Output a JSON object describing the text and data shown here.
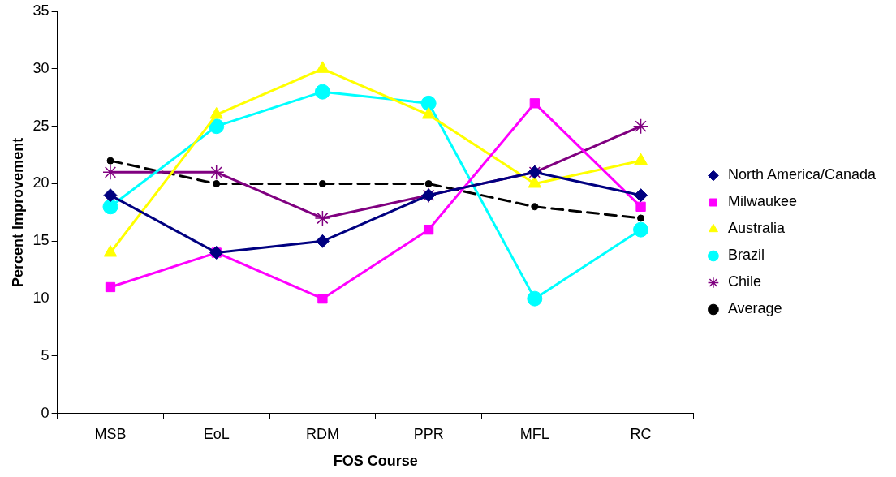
{
  "chart_data": {
    "type": "line",
    "xlabel": "FOS Course",
    "ylabel": "Percent Improvement",
    "categories": [
      "MSB",
      "EoL",
      "RDM",
      "PPR",
      "MFL",
      "RC"
    ],
    "ylim": [
      0,
      35
    ],
    "yticks": [
      0,
      5,
      10,
      15,
      20,
      25,
      30,
      35
    ],
    "grid": false,
    "legend": "right",
    "series": [
      {
        "name": "North America/Canada",
        "color": "#000080",
        "marker": "diamond",
        "values": [
          19,
          14,
          15,
          19,
          21,
          19
        ]
      },
      {
        "name": "Milwaukee",
        "color": "#ff00ff",
        "marker": "square",
        "values": [
          11,
          14,
          10,
          16,
          27,
          18
        ]
      },
      {
        "name": "Australia",
        "color": "#ffff00",
        "marker": "triangle",
        "values": [
          14,
          26,
          30,
          26,
          20,
          22
        ]
      },
      {
        "name": "Brazil",
        "color": "#00ffff",
        "marker": "circle",
        "values": [
          18,
          25,
          28,
          27,
          10,
          16
        ]
      },
      {
        "name": "Chile",
        "color": "#800080",
        "marker": "cross",
        "values": [
          21,
          21,
          17,
          19,
          21,
          25
        ]
      },
      {
        "name": "Average",
        "color": "#000000",
        "marker": "circle",
        "line_style": "dashed",
        "values": [
          22,
          20,
          20,
          20,
          18,
          17
        ]
      }
    ]
  }
}
